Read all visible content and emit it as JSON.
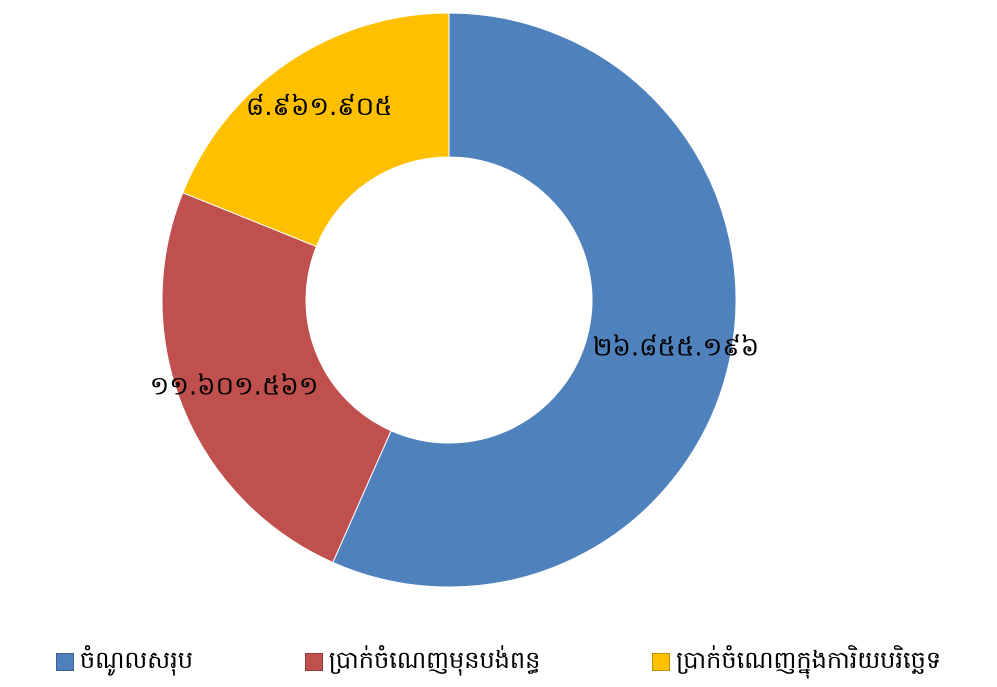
{
  "chart_data": {
    "type": "donut",
    "categories": [
      "ចំណូលសរុប",
      "ប្រាក់ចំណេញមុនបង់ពន្ធ",
      "ប្រាក់ចំណេញក្នុងការិយបរិច្ឆេទ"
    ],
    "values": [
      26855196,
      11601561,
      8961905
    ],
    "value_labels": [
      "២៦.៨៥៥.១៩៦",
      "១១.៦០១.៥៦១",
      "៨.៩៦១.៩០៥"
    ],
    "colors": [
      "#4f81bd",
      "#c0504d",
      "#ffc000"
    ],
    "legend": "bottom"
  }
}
